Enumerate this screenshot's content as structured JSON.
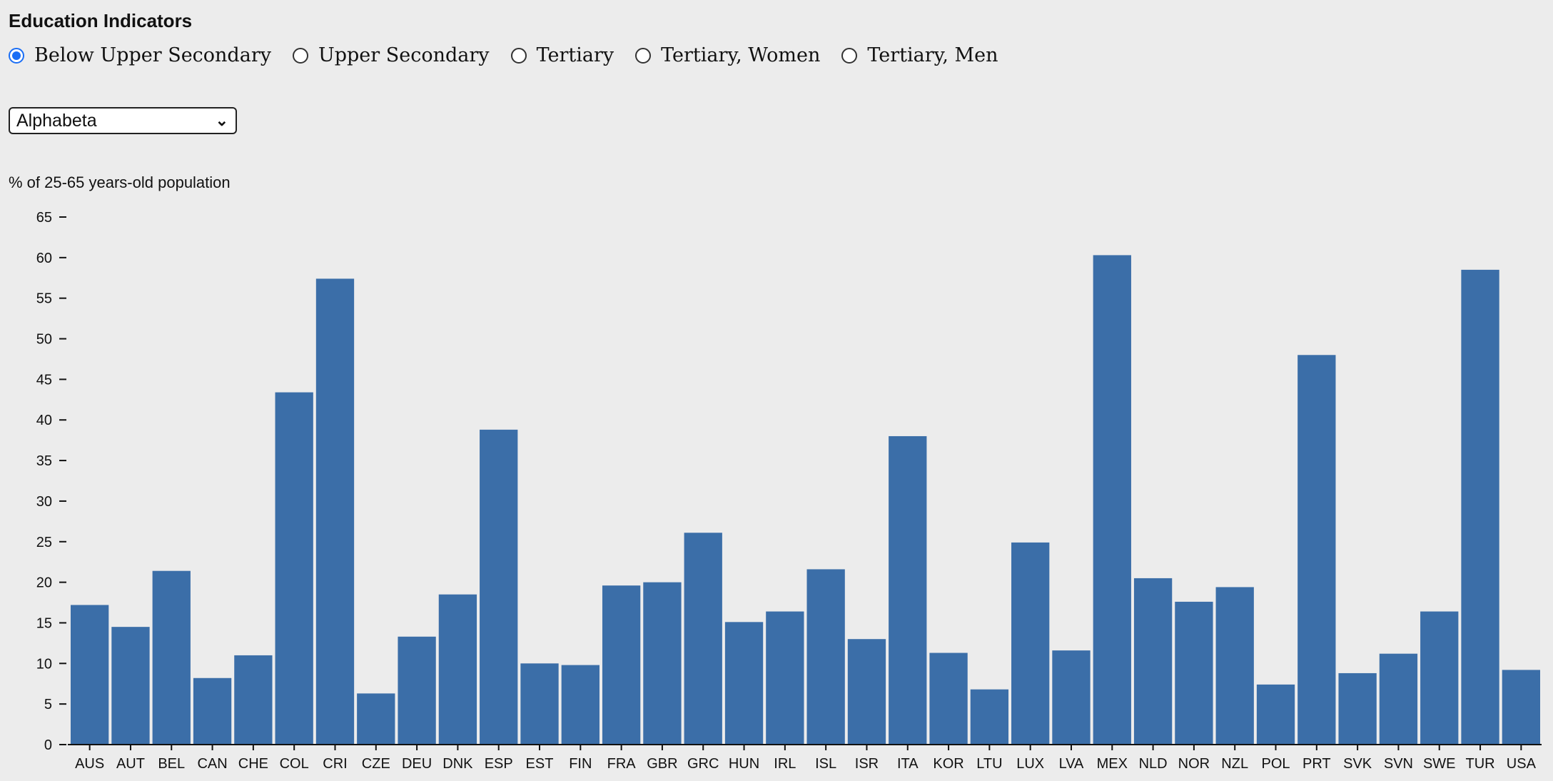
{
  "header": {
    "title": "Education Indicators"
  },
  "indicators": [
    {
      "label": "Below Upper Secondary",
      "checked": true
    },
    {
      "label": "Upper Secondary",
      "checked": false
    },
    {
      "label": "Tertiary",
      "checked": false
    },
    {
      "label": "Tertiary, Women",
      "checked": false
    },
    {
      "label": "Tertiary, Men",
      "checked": false
    }
  ],
  "sort_select": {
    "value": "Alphabeta"
  },
  "colors": {
    "bar": "#3b6ea8",
    "accent": "#1a6ef5",
    "background": "#ececec"
  },
  "chart_data": {
    "type": "bar",
    "title": "",
    "xlabel": "",
    "ylabel": "% of 25-65 years-old population",
    "ylim": [
      0,
      65
    ],
    "yticks": [
      0,
      5,
      10,
      15,
      20,
      25,
      30,
      35,
      40,
      45,
      50,
      55,
      60,
      65
    ],
    "categories": [
      "AUS",
      "AUT",
      "BEL",
      "CAN",
      "CHE",
      "COL",
      "CRI",
      "CZE",
      "DEU",
      "DNK",
      "ESP",
      "EST",
      "FIN",
      "FRA",
      "GBR",
      "GRC",
      "HUN",
      "IRL",
      "ISL",
      "ISR",
      "ITA",
      "KOR",
      "LTU",
      "LUX",
      "LVA",
      "MEX",
      "NLD",
      "NOR",
      "NZL",
      "POL",
      "PRT",
      "SVK",
      "SVN",
      "SWE",
      "TUR",
      "USA"
    ],
    "values": [
      17.2,
      14.5,
      21.4,
      8.2,
      11.0,
      43.4,
      57.4,
      6.3,
      13.3,
      18.5,
      38.8,
      10.0,
      9.8,
      19.6,
      20.0,
      26.1,
      15.1,
      16.4,
      21.6,
      13.0,
      38.0,
      11.3,
      6.8,
      24.9,
      11.6,
      60.3,
      20.5,
      17.6,
      19.4,
      7.4,
      48.0,
      8.8,
      11.2,
      16.4,
      58.5,
      9.2
    ]
  }
}
